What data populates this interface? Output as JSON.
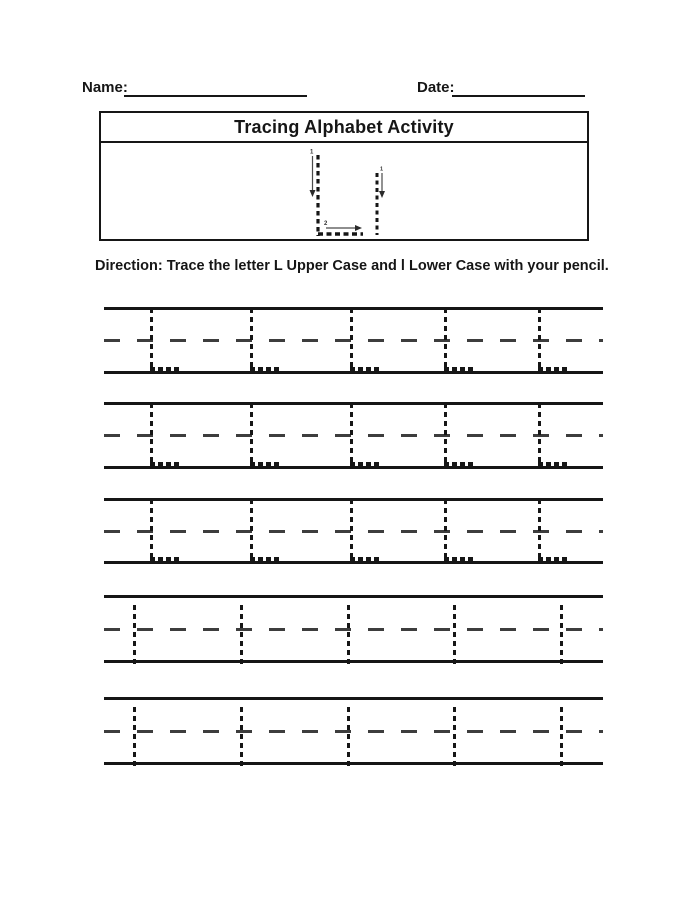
{
  "header": {
    "name_label": "Name:",
    "date_label": "Date:"
  },
  "title_box": {
    "title": "Tracing Alphabet Activity",
    "example": {
      "uppercase_letter": "L",
      "lowercase_letter": "l",
      "uppercase_stroke_1_label": "1",
      "uppercase_stroke_2_label": "2",
      "lowercase_stroke_1_label": "1"
    }
  },
  "direction_text": "Direction: Trace the letter L Upper Case and l Lower Case with your pencil.",
  "worksheet": {
    "letters_per_row": 5,
    "rows": [
      {
        "letter": "L",
        "case": "upper"
      },
      {
        "letter": "L",
        "case": "upper"
      },
      {
        "letter": "L",
        "case": "upper"
      },
      {
        "letter": "l",
        "case": "lower"
      },
      {
        "letter": "l",
        "case": "lower"
      }
    ]
  },
  "colors": {
    "ink": "#161616",
    "midline_dash": "#3d3d3d",
    "background": "#ffffff"
  }
}
